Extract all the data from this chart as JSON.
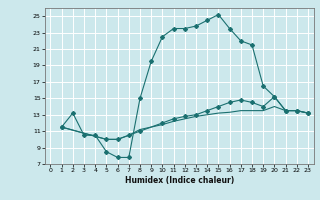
{
  "title": "",
  "xlabel": "Humidex (Indice chaleur)",
  "ylabel": "",
  "bg_color": "#cce8ec",
  "grid_color": "#ffffff",
  "line_color": "#1a7070",
  "xlim": [
    -0.5,
    23.5
  ],
  "ylim": [
    7,
    26
  ],
  "xticks": [
    0,
    1,
    2,
    3,
    4,
    5,
    6,
    7,
    8,
    9,
    10,
    11,
    12,
    13,
    14,
    15,
    16,
    17,
    18,
    19,
    20,
    21,
    22,
    23
  ],
  "yticks": [
    7,
    9,
    11,
    13,
    15,
    17,
    19,
    21,
    23,
    25
  ],
  "curve1_x": [
    1,
    2,
    3,
    4,
    5,
    6,
    7,
    8,
    9,
    10,
    11,
    12,
    13,
    14,
    15,
    16,
    17,
    18,
    19,
    20,
    21,
    22,
    23
  ],
  "curve1_y": [
    11.5,
    13.2,
    10.5,
    10.5,
    8.5,
    7.8,
    7.8,
    15.0,
    19.5,
    22.5,
    23.5,
    23.5,
    23.8,
    24.5,
    25.2,
    23.5,
    22.0,
    21.5,
    16.5,
    15.2,
    13.5,
    13.5,
    13.2
  ],
  "curve2_x": [
    1,
    5,
    6,
    7,
    8,
    10,
    11,
    12,
    13,
    14,
    15,
    16,
    17,
    18,
    19,
    20,
    21,
    22,
    23
  ],
  "curve2_y": [
    11.5,
    10.0,
    10.0,
    10.5,
    11.0,
    12.0,
    12.5,
    12.8,
    13.0,
    13.5,
    14.0,
    14.5,
    14.8,
    14.5,
    14.0,
    15.2,
    13.5,
    13.5,
    13.2
  ],
  "curve3_x": [
    1,
    5,
    6,
    7,
    8,
    10,
    11,
    12,
    13,
    14,
    15,
    16,
    17,
    18,
    19,
    20,
    21,
    22,
    23
  ],
  "curve3_y": [
    11.5,
    10.0,
    10.0,
    10.5,
    11.2,
    11.8,
    12.2,
    12.5,
    12.8,
    13.0,
    13.2,
    13.3,
    13.5,
    13.5,
    13.5,
    14.0,
    13.5,
    13.5,
    13.2
  ]
}
